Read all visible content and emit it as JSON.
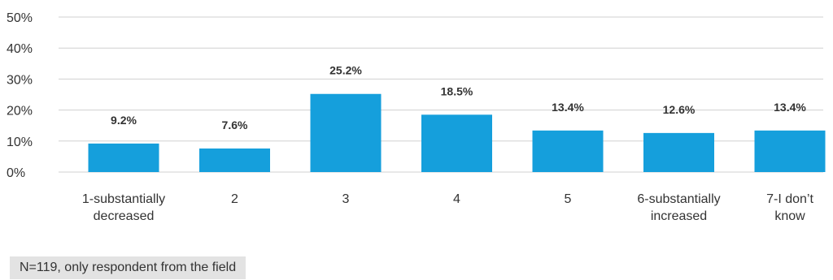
{
  "chart_data": {
    "type": "bar",
    "categories": [
      [
        "1-substantially",
        "decreased"
      ],
      [
        "2"
      ],
      [
        "3"
      ],
      [
        "4"
      ],
      [
        "5"
      ],
      [
        "6-substantially",
        "increased"
      ],
      [
        "7-I don’t",
        "know"
      ]
    ],
    "values": [
      9.2,
      7.6,
      25.2,
      18.5,
      13.4,
      12.6,
      13.4
    ],
    "value_labels": [
      "9.2%",
      "7.6%",
      "25.2%",
      "18.5%",
      "13.4%",
      "12.6%",
      "13.4%"
    ],
    "yticks": [
      "0%",
      "10%",
      "20%",
      "30%",
      "40%",
      "50%"
    ],
    "ylim": [
      0,
      50
    ],
    "grid": true,
    "bar_color": "#159fdc",
    "grid_color": "#d0d0d0"
  },
  "footnote": "N=119, only respondent from the field"
}
